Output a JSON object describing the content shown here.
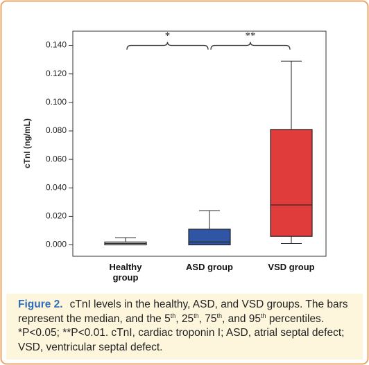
{
  "chart_data": {
    "type": "box",
    "y_label": "cTnI (ng/mL)",
    "categories": [
      "Healthy group",
      "ASD group",
      "VSD group"
    ],
    "colors": [
      "#f4f4f4",
      "#2f55a4",
      "#e03c3c"
    ],
    "boxes": [
      {
        "whislo": 0.0,
        "q1": 0.0,
        "median": 0.001,
        "q3": 0.002,
        "whishi": 0.005
      },
      {
        "whislo": 0.0,
        "q1": 0.0,
        "median": 0.002,
        "q3": 0.011,
        "whishi": 0.024
      },
      {
        "whislo": 0.001,
        "q1": 0.006,
        "median": 0.028,
        "q3": 0.081,
        "whishi": 0.129
      }
    ],
    "ylim": [
      -0.008,
      0.15
    ],
    "yticks": [
      {
        "value": 0.0,
        "label": "0.000"
      },
      {
        "value": 0.02,
        "label": "0.020"
      },
      {
        "value": 0.04,
        "label": "0.040"
      },
      {
        "value": 0.06,
        "label": "0.060"
      },
      {
        "value": 0.08,
        "label": "0.080"
      },
      {
        "value": 0.1,
        "label": "0.100"
      },
      {
        "value": 0.12,
        "label": "0.120"
      },
      {
        "value": 0.14,
        "label": "0.140"
      }
    ],
    "annotations": [
      {
        "text": "*",
        "from": 0,
        "to": 1,
        "y": 0.14
      },
      {
        "text": "**",
        "from": 1,
        "to": 2,
        "y": 0.14
      }
    ]
  },
  "caption": {
    "label": "Figure 2.",
    "segments": [
      {
        "text": "cTnI levels in the healthy, ASD, and VSD groups. The bars represent the median, and the 5",
        "sup": false
      },
      {
        "text": "th",
        "sup": true
      },
      {
        "text": ", 25",
        "sup": false
      },
      {
        "text": "th",
        "sup": true
      },
      {
        "text": ", 75",
        "sup": false
      },
      {
        "text": "th",
        "sup": true
      },
      {
        "text": ", and 95",
        "sup": false
      },
      {
        "text": "th",
        "sup": true
      },
      {
        "text": " percentiles. *P<0.05; **P<0.01. cTnI, cardiac troponin I; ASD, atrial septal defect; VSD, ventricular septal defect.",
        "sup": false
      }
    ]
  }
}
